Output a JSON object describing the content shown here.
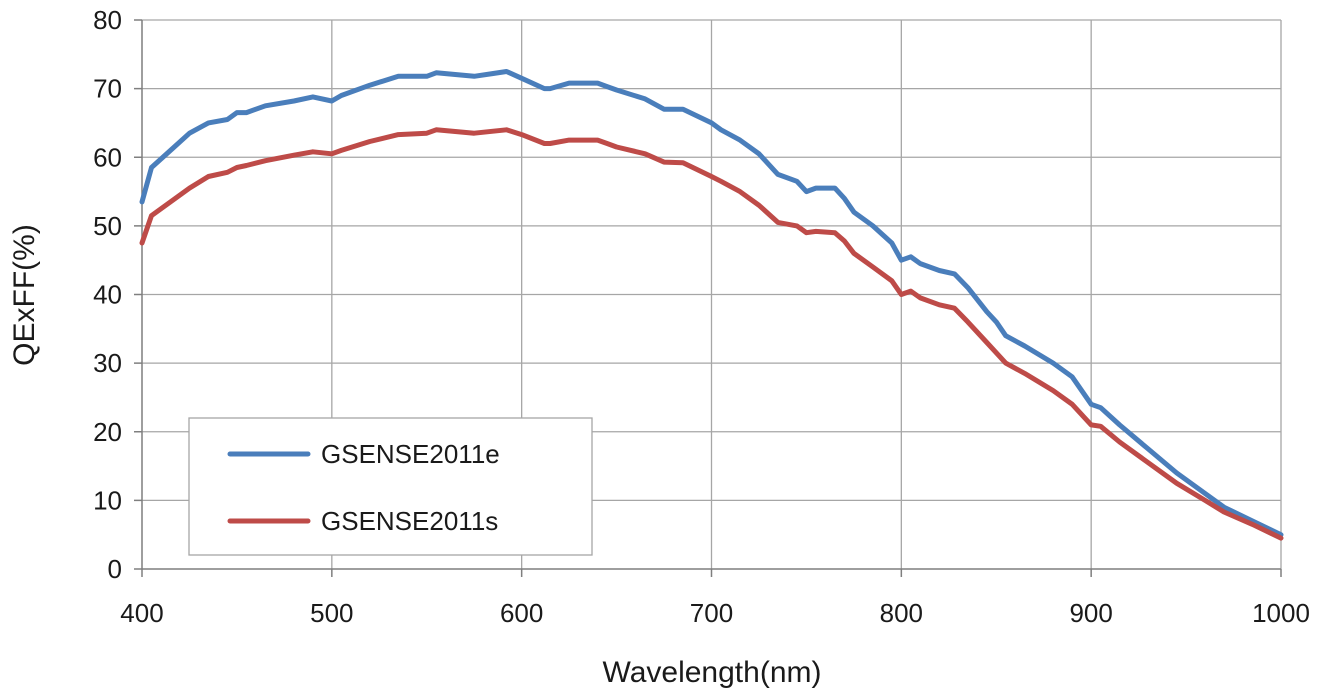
{
  "chart_data": {
    "type": "line",
    "title": "",
    "xlabel": "Wavelength(nm)",
    "ylabel": "QExFF(%)",
    "xlim": [
      400,
      1000
    ],
    "ylim": [
      0,
      80
    ],
    "x_ticks": [
      400,
      500,
      600,
      700,
      800,
      900,
      1000
    ],
    "y_ticks": [
      0,
      10,
      20,
      30,
      40,
      50,
      60,
      70,
      80
    ],
    "grid": true,
    "legend_position": "bottom-left",
    "series": [
      {
        "name": "GSENSE2011e",
        "color": "#4a7ebb",
        "points": [
          [
            400,
            53.5
          ],
          [
            405,
            58.5
          ],
          [
            415,
            61
          ],
          [
            425,
            63.5
          ],
          [
            435,
            65
          ],
          [
            445,
            65.5
          ],
          [
            450,
            66.5
          ],
          [
            455,
            66.5
          ],
          [
            465,
            67.5
          ],
          [
            480,
            68.2
          ],
          [
            490,
            68.8
          ],
          [
            500,
            68.2
          ],
          [
            505,
            69
          ],
          [
            520,
            70.5
          ],
          [
            535,
            71.8
          ],
          [
            550,
            71.8
          ],
          [
            555,
            72.3
          ],
          [
            575,
            71.8
          ],
          [
            585,
            72.2
          ],
          [
            592,
            72.5
          ],
          [
            600,
            71.5
          ],
          [
            612,
            70
          ],
          [
            615,
            70
          ],
          [
            625,
            70.8
          ],
          [
            640,
            70.8
          ],
          [
            645,
            70.3
          ],
          [
            650,
            69.8
          ],
          [
            665,
            68.5
          ],
          [
            675,
            67
          ],
          [
            685,
            67
          ],
          [
            700,
            65
          ],
          [
            705,
            64
          ],
          [
            715,
            62.5
          ],
          [
            725,
            60.5
          ],
          [
            735,
            57.5
          ],
          [
            745,
            56.5
          ],
          [
            750,
            55
          ],
          [
            755,
            55.5
          ],
          [
            765,
            55.5
          ],
          [
            770,
            54
          ],
          [
            775,
            52
          ],
          [
            785,
            50
          ],
          [
            795,
            47.5
          ],
          [
            800,
            45
          ],
          [
            805,
            45.5
          ],
          [
            810,
            44.5
          ],
          [
            820,
            43.5
          ],
          [
            828,
            43
          ],
          [
            835,
            41
          ],
          [
            845,
            37.5
          ],
          [
            850,
            36
          ],
          [
            855,
            34
          ],
          [
            865,
            32.5
          ],
          [
            880,
            30
          ],
          [
            890,
            28
          ],
          [
            900,
            24
          ],
          [
            905,
            23.5
          ],
          [
            915,
            21
          ],
          [
            930,
            17.5
          ],
          [
            945,
            14
          ],
          [
            960,
            11
          ],
          [
            970,
            9
          ],
          [
            985,
            7
          ],
          [
            1000,
            5
          ]
        ]
      },
      {
        "name": "GSENSE2011s",
        "color": "#be4b48",
        "points": [
          [
            400,
            47.5
          ],
          [
            405,
            51.5
          ],
          [
            415,
            53.5
          ],
          [
            425,
            55.5
          ],
          [
            435,
            57.2
          ],
          [
            445,
            57.8
          ],
          [
            450,
            58.5
          ],
          [
            455,
            58.8
          ],
          [
            465,
            59.5
          ],
          [
            480,
            60.3
          ],
          [
            490,
            60.8
          ],
          [
            500,
            60.5
          ],
          [
            505,
            61
          ],
          [
            520,
            62.3
          ],
          [
            535,
            63.3
          ],
          [
            550,
            63.5
          ],
          [
            555,
            64
          ],
          [
            575,
            63.5
          ],
          [
            585,
            63.8
          ],
          [
            592,
            64
          ],
          [
            600,
            63.3
          ],
          [
            612,
            62
          ],
          [
            615,
            62
          ],
          [
            625,
            62.5
          ],
          [
            640,
            62.5
          ],
          [
            645,
            62
          ],
          [
            650,
            61.5
          ],
          [
            665,
            60.5
          ],
          [
            675,
            59.3
          ],
          [
            685,
            59.2
          ],
          [
            700,
            57.2
          ],
          [
            705,
            56.5
          ],
          [
            715,
            55
          ],
          [
            725,
            53
          ],
          [
            735,
            50.5
          ],
          [
            745,
            50
          ],
          [
            750,
            49
          ],
          [
            755,
            49.2
          ],
          [
            765,
            49
          ],
          [
            770,
            47.8
          ],
          [
            775,
            46
          ],
          [
            785,
            44
          ],
          [
            795,
            42
          ],
          [
            800,
            40
          ],
          [
            805,
            40.5
          ],
          [
            810,
            39.5
          ],
          [
            820,
            38.5
          ],
          [
            828,
            38
          ],
          [
            835,
            36
          ],
          [
            845,
            33
          ],
          [
            850,
            31.5
          ],
          [
            855,
            30
          ],
          [
            865,
            28.5
          ],
          [
            880,
            26
          ],
          [
            890,
            24
          ],
          [
            900,
            21
          ],
          [
            905,
            20.8
          ],
          [
            915,
            18.5
          ],
          [
            930,
            15.5
          ],
          [
            945,
            12.5
          ],
          [
            960,
            10
          ],
          [
            970,
            8.3
          ],
          [
            985,
            6.5
          ],
          [
            1000,
            4.5
          ]
        ]
      }
    ]
  }
}
